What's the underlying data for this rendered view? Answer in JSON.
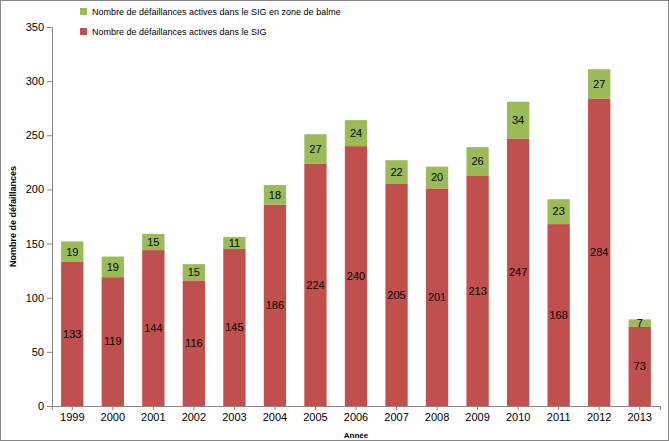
{
  "chart_data": {
    "type": "bar",
    "stacked": true,
    "data_labels": true,
    "grid": false,
    "legend": "top-left",
    "x_label": "Année",
    "y_label": "Nombre de défaillances",
    "categories": [
      "1999",
      "2000",
      "2001",
      "2002",
      "2003",
      "2004",
      "2005",
      "2006",
      "2007",
      "2008",
      "2009",
      "2010",
      "2011",
      "2012",
      "2013"
    ],
    "series": [
      {
        "name": "Nombre de défaillances actives dans le SIG",
        "color": "#c0504d",
        "values": [
          133,
          119,
          144,
          116,
          145,
          186,
          224,
          240,
          205,
          201,
          213,
          247,
          168,
          284,
          73
        ]
      },
      {
        "name": "Nombre de défaillances actives dans le SIG en zone de balme",
        "color": "#9bbb59",
        "values": [
          19,
          19,
          15,
          15,
          11,
          18,
          27,
          24,
          22,
          20,
          26,
          34,
          23,
          27,
          7
        ]
      }
    ],
    "ylim": [
      0,
      350
    ],
    "yticks": [
      0,
      50,
      100,
      150,
      200,
      250,
      300,
      350
    ]
  }
}
